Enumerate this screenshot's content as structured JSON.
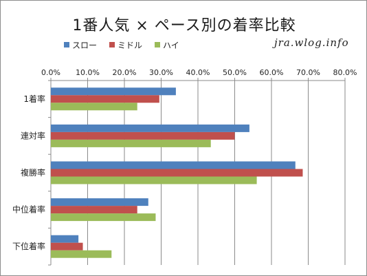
{
  "chart_data": {
    "type": "bar",
    "orientation": "horizontal",
    "title": "1番人気 × ペース別の着率比較",
    "categories": [
      "1着率",
      "連対率",
      "複勝率",
      "中位着率",
      "下位着率"
    ],
    "series": [
      {
        "name": "スロー",
        "color": "#4f81bd",
        "values": [
          34.0,
          54.0,
          66.5,
          26.5,
          7.5
        ]
      },
      {
        "name": "ミドル",
        "color": "#c0504d",
        "values": [
          29.5,
          50.0,
          68.5,
          23.5,
          8.7
        ]
      },
      {
        "name": "ハイ",
        "color": "#9bbb59",
        "values": [
          23.5,
          43.5,
          56.0,
          28.5,
          16.5
        ]
      }
    ],
    "xlim": [
      0,
      80
    ],
    "xticks": [
      "0.0%",
      "10.0%",
      "20.0%",
      "30.0%",
      "40.0%",
      "50.0%",
      "60.0%",
      "70.0%",
      "80.0%"
    ],
    "grid": true,
    "legend_position": "top-left"
  },
  "watermark": "jra.wlog.info"
}
